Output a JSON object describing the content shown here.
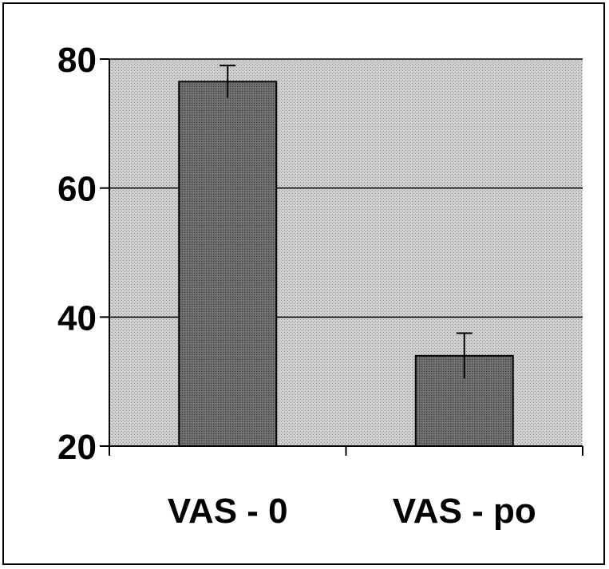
{
  "chart_data": {
    "type": "bar",
    "categories": [
      "VAS - 0",
      "VAS - po"
    ],
    "values": [
      76.5,
      34
    ],
    "error_plus": [
      2.5,
      3.5
    ],
    "ylim": [
      20,
      80
    ],
    "yticks": [
      20,
      40,
      60,
      80
    ],
    "ytick_labels": [
      "20",
      "40",
      "60",
      "80"
    ],
    "grid": true,
    "colors": {
      "bar": "#5a5a5a",
      "plot_bg": "#c4c4c4"
    }
  }
}
